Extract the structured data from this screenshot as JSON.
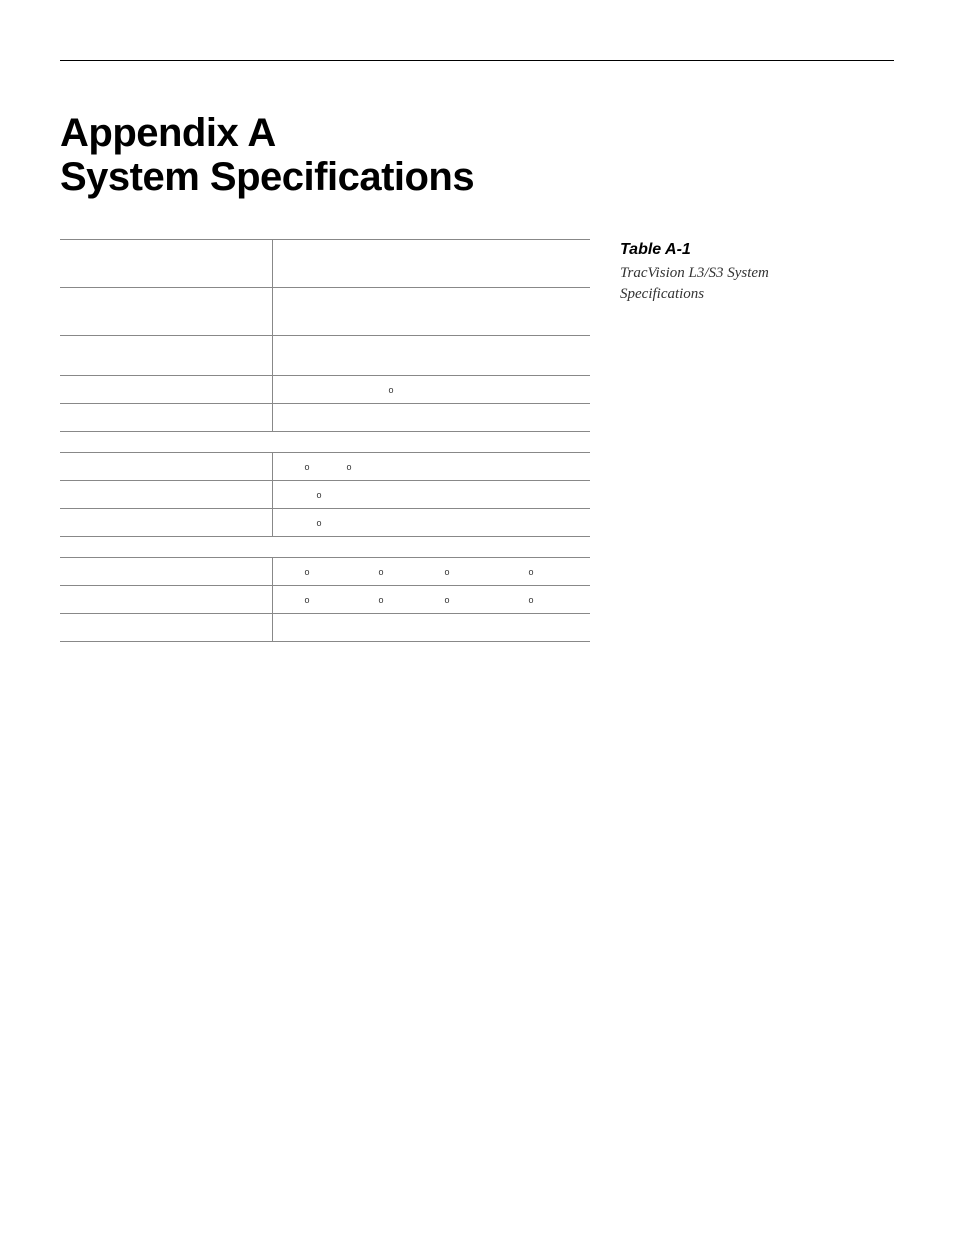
{
  "heading_line1": "Appendix A",
  "heading_line2": "System Specifications",
  "sidebar": {
    "table_label": "Table A-1",
    "caption": "TracVision L3/S3 System Specifications"
  },
  "group1": {
    "rows": [
      {
        "label": "",
        "value": "",
        "height": "tall"
      },
      {
        "label": "",
        "value": "",
        "height": "tall"
      },
      {
        "label": "",
        "value": "",
        "height": "mid"
      },
      {
        "label": "",
        "value": "o",
        "deg_positions": [
          108
        ],
        "height": "short"
      },
      {
        "label": "",
        "value": "",
        "height": "short"
      }
    ]
  },
  "group2": {
    "rows": [
      {
        "label": "",
        "value": "o   o",
        "deg_positions": [
          24,
          66
        ],
        "height": "short"
      },
      {
        "label": "",
        "value": "o",
        "deg_positions": [
          36
        ],
        "height": "short"
      },
      {
        "label": "",
        "value": "o",
        "deg_positions": [
          36
        ],
        "height": "short"
      }
    ]
  },
  "group3": {
    "rows": [
      {
        "label": "",
        "value": "o        o        o        o",
        "deg_positions": [
          24,
          98,
          164,
          248
        ],
        "height": "short"
      },
      {
        "label": "",
        "value": "o        o        o        o",
        "deg_positions": [
          24,
          98,
          164,
          248
        ],
        "height": "short"
      },
      {
        "label": "",
        "value": "",
        "height": "short"
      }
    ]
  },
  "colors": {
    "rule": "#888888",
    "text": "#000000",
    "bg": "#ffffff"
  }
}
